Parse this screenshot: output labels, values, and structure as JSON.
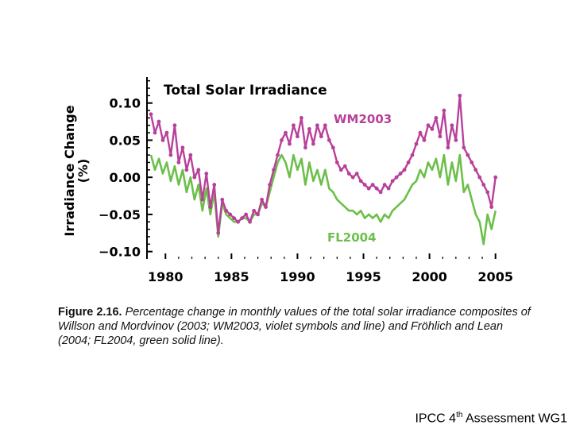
{
  "chart_data": {
    "type": "line",
    "title": "Total Solar Irradiance",
    "ylabel_line1": "Irradiance Change",
    "ylabel_line2": "(%)",
    "xlabel": "",
    "xlim": [
      1978.6,
      2005.5
    ],
    "ylim": [
      -0.11,
      0.135
    ],
    "xticks": [
      1980,
      1985,
      1990,
      1995,
      2000,
      2005
    ],
    "yticks": [
      0.1,
      0.05,
      0.0,
      -0.05,
      -0.1
    ],
    "ytick_labels": [
      "0.10",
      "0.05",
      "0.00",
      "−0.05",
      "−0.10"
    ],
    "series": [
      {
        "name": "WM2003",
        "color": "#b8409a",
        "markers": true,
        "x": [
          1978.9,
          1979.2,
          1979.5,
          1979.8,
          1980.1,
          1980.4,
          1980.7,
          1981.0,
          1981.3,
          1981.6,
          1981.9,
          1982.2,
          1982.5,
          1982.8,
          1983.1,
          1983.4,
          1983.7,
          1984.0,
          1984.3,
          1984.6,
          1984.9,
          1985.2,
          1985.5,
          1985.8,
          1986.1,
          1986.4,
          1986.7,
          1987.0,
          1987.3,
          1987.6,
          1987.9,
          1988.2,
          1988.5,
          1988.8,
          1989.1,
          1989.4,
          1989.7,
          1990.0,
          1990.3,
          1990.6,
          1990.9,
          1991.2,
          1991.5,
          1991.8,
          1992.1,
          1992.4,
          1992.7,
          1993.0,
          1993.3,
          1993.6,
          1993.9,
          1994.2,
          1994.5,
          1994.8,
          1995.1,
          1995.4,
          1995.7,
          1996.0,
          1996.3,
          1996.6,
          1996.9,
          1997.2,
          1997.5,
          1997.8,
          1998.1,
          1998.4,
          1998.7,
          1999.0,
          1999.3,
          1999.6,
          1999.9,
          2000.2,
          2000.5,
          2000.8,
          2001.1,
          2001.4,
          2001.7,
          2002.0,
          2002.3,
          2002.6,
          2002.9,
          2003.2,
          2003.5,
          2003.8,
          2004.1,
          2004.4,
          2004.7,
          2005.0
        ],
        "y": [
          0.085,
          0.06,
          0.075,
          0.05,
          0.06,
          0.03,
          0.07,
          0.02,
          0.04,
          0.01,
          0.03,
          0.0,
          0.01,
          -0.03,
          0.005,
          -0.04,
          -0.01,
          -0.075,
          -0.03,
          -0.045,
          -0.05,
          -0.055,
          -0.06,
          -0.055,
          -0.05,
          -0.06,
          -0.045,
          -0.05,
          -0.03,
          -0.04,
          -0.01,
          0.01,
          0.03,
          0.05,
          0.06,
          0.045,
          0.07,
          0.055,
          0.08,
          0.04,
          0.065,
          0.045,
          0.07,
          0.055,
          0.07,
          0.05,
          0.04,
          0.02,
          0.01,
          0.015,
          0.005,
          0.0,
          0.005,
          -0.005,
          -0.01,
          -0.015,
          -0.01,
          -0.015,
          -0.02,
          -0.01,
          -0.015,
          -0.005,
          0.0,
          0.005,
          0.01,
          0.02,
          0.03,
          0.045,
          0.06,
          0.05,
          0.07,
          0.065,
          0.08,
          0.055,
          0.09,
          0.04,
          0.07,
          0.05,
          0.11,
          0.04,
          0.03,
          0.02,
          0.01,
          0.0,
          -0.01,
          -0.02,
          -0.04,
          0.0
        ]
      },
      {
        "name": "FL2004",
        "color": "#6cbf4a",
        "markers": false,
        "x": [
          1978.9,
          1979.2,
          1979.5,
          1979.8,
          1980.1,
          1980.4,
          1980.7,
          1981.0,
          1981.3,
          1981.6,
          1981.9,
          1982.2,
          1982.5,
          1982.8,
          1983.1,
          1983.4,
          1983.7,
          1984.0,
          1984.3,
          1984.6,
          1984.9,
          1985.2,
          1985.5,
          1985.8,
          1986.1,
          1986.4,
          1986.7,
          1987.0,
          1987.3,
          1987.6,
          1987.9,
          1988.2,
          1988.5,
          1988.8,
          1989.1,
          1989.4,
          1989.7,
          1990.0,
          1990.3,
          1990.6,
          1990.9,
          1991.2,
          1991.5,
          1991.8,
          1992.1,
          1992.4,
          1992.7,
          1993.0,
          1993.3,
          1993.6,
          1993.9,
          1994.2,
          1994.5,
          1994.8,
          1995.1,
          1995.4,
          1995.7,
          1996.0,
          1996.3,
          1996.6,
          1996.9,
          1997.2,
          1997.5,
          1997.8,
          1998.1,
          1998.4,
          1998.7,
          1999.0,
          1999.3,
          1999.6,
          1999.9,
          2000.2,
          2000.5,
          2000.8,
          2001.1,
          2001.4,
          2001.7,
          2002.0,
          2002.3,
          2002.6,
          2002.9,
          2003.2,
          2003.5,
          2003.8,
          2004.1,
          2004.4,
          2004.7,
          2005.0
        ],
        "y": [
          0.03,
          0.01,
          0.025,
          0.005,
          0.02,
          -0.005,
          0.015,
          -0.01,
          0.01,
          -0.02,
          0.0,
          -0.03,
          -0.01,
          -0.045,
          -0.015,
          -0.05,
          -0.02,
          -0.08,
          -0.035,
          -0.05,
          -0.055,
          -0.06,
          -0.06,
          -0.055,
          -0.055,
          -0.06,
          -0.05,
          -0.05,
          -0.035,
          -0.04,
          -0.02,
          0.0,
          0.02,
          0.03,
          0.02,
          0.0,
          0.03,
          0.01,
          0.025,
          -0.01,
          0.02,
          -0.005,
          0.01,
          -0.01,
          0.01,
          -0.015,
          -0.02,
          -0.03,
          -0.035,
          -0.04,
          -0.045,
          -0.045,
          -0.05,
          -0.045,
          -0.055,
          -0.05,
          -0.055,
          -0.05,
          -0.06,
          -0.05,
          -0.055,
          -0.045,
          -0.04,
          -0.035,
          -0.03,
          -0.02,
          -0.01,
          -0.005,
          0.01,
          0.0,
          0.02,
          0.01,
          0.025,
          0.0,
          0.03,
          -0.01,
          0.02,
          -0.005,
          0.03,
          -0.02,
          -0.01,
          -0.03,
          -0.05,
          -0.06,
          -0.09,
          -0.05,
          -0.07,
          -0.045
        ]
      }
    ]
  },
  "caption": {
    "figure_label": "Figure 2.16.",
    "text": " Percentage change in monthly values of the total solar irradiance composites of Willson and Mordvinov (2003; WM2003, violet symbols and line) and Fröhlich and Lean (2004; FL2004, green solid line)."
  },
  "footer": {
    "prefix": "IPCC 4",
    "sup": "th",
    "suffix": " Assessment WG1"
  }
}
